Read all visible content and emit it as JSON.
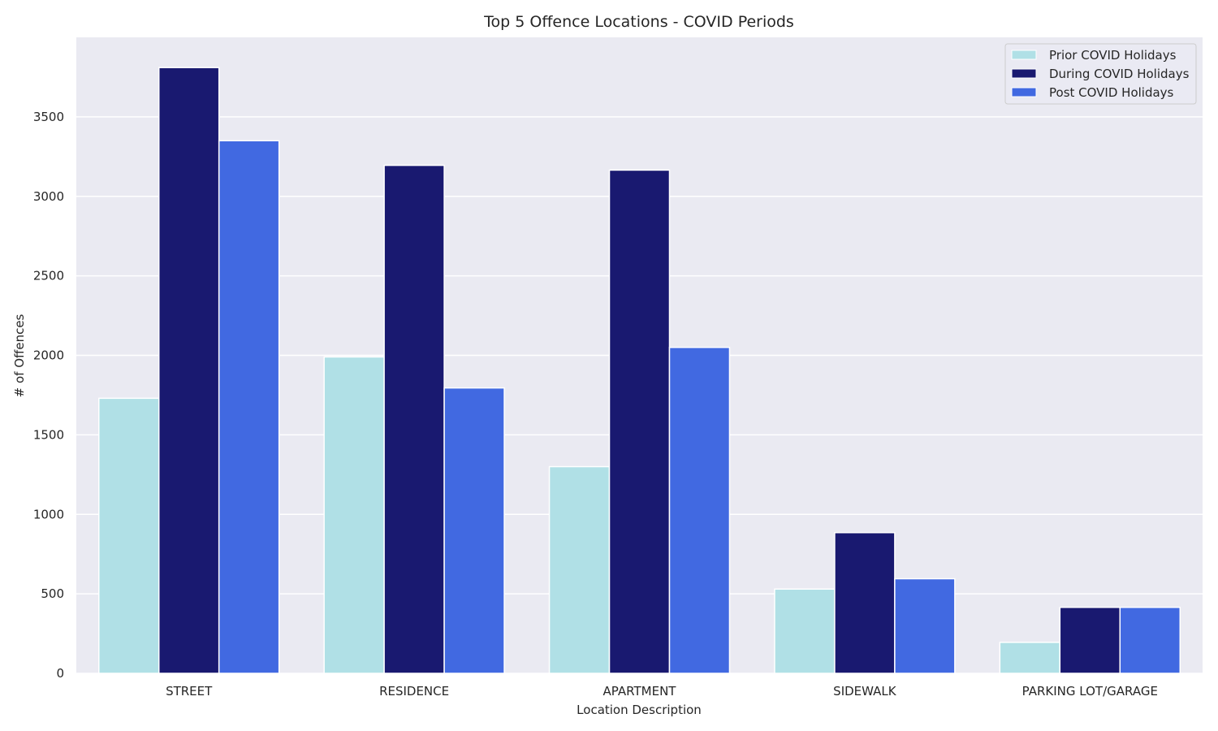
{
  "chart_data": {
    "type": "bar",
    "title": "Top 5 Offence Locations - COVID Periods",
    "xlabel": "Location Description",
    "ylabel": "# of Offences",
    "categories": [
      "STREET",
      "RESIDENCE",
      "APARTMENT",
      "SIDEWALK",
      "PARKING LOT/GARAGE"
    ],
    "series": [
      {
        "name": "Prior COVID Holidays",
        "color": "#b0e0e6",
        "values": [
          1730,
          1990,
          1300,
          530,
          195
        ]
      },
      {
        "name": "During COVID Holidays",
        "color": "#191970",
        "values": [
          3810,
          3195,
          3165,
          885,
          415
        ]
      },
      {
        "name": "Post COVID Holidays",
        "color": "#4169e1",
        "values": [
          3350,
          1795,
          2050,
          595,
          415
        ]
      }
    ],
    "yticks": [
      0,
      500,
      1000,
      1500,
      2000,
      2500,
      3000,
      3500
    ],
    "ylim": [
      0,
      4000
    ],
    "grid": true,
    "legend_position": "top-right",
    "background": "#eaeaf2"
  }
}
